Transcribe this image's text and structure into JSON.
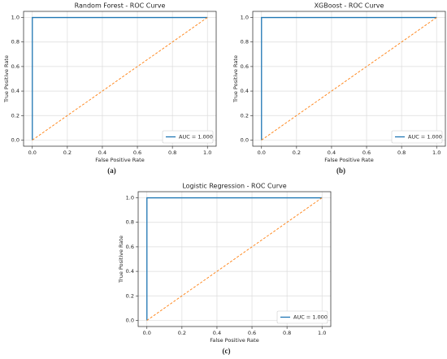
{
  "chart_data": [
    {
      "type": "line",
      "title": "Random Forest - ROC Curve",
      "xlabel": "False Positive Rate",
      "ylabel": "True Positive Rate",
      "caption": "(a)",
      "xlim": [
        -0.05,
        1.05
      ],
      "ylim": [
        -0.05,
        1.05
      ],
      "xticks": [
        {
          "value": 0,
          "label": "0.0"
        },
        0.2,
        0.4,
        0.6,
        0.8,
        {
          "value": 1,
          "label": "1.0"
        }
      ],
      "yticks": [
        {
          "value": 0,
          "label": "0.0"
        },
        0.2,
        0.4,
        0.6,
        0.8,
        {
          "value": 1,
          "label": "1.0"
        }
      ],
      "grid": true,
      "legend": "lower right",
      "series": [
        {
          "name": "AUC = 1.000",
          "color": "#1f77b4",
          "x": [
            0,
            0,
            1
          ],
          "values": [
            0,
            1,
            1
          ]
        },
        {
          "color": "#ff7f0e",
          "dashed": true,
          "x": [
            0,
            1
          ],
          "values": [
            0,
            1
          ]
        }
      ]
    },
    {
      "type": "line",
      "title": "XGBoost - ROC Curve",
      "xlabel": "False Positive Rate",
      "ylabel": "True Positive Rate",
      "caption": "(b)",
      "xlim": [
        -0.05,
        1.05
      ],
      "ylim": [
        -0.05,
        1.05
      ],
      "xticks": [
        {
          "value": 0,
          "label": "0.0"
        },
        0.2,
        0.4,
        0.6,
        0.8,
        {
          "value": 1,
          "label": "1.0"
        }
      ],
      "yticks": [
        {
          "value": 0,
          "label": "0.0"
        },
        0.2,
        0.4,
        0.6,
        0.8,
        {
          "value": 1,
          "label": "1.0"
        }
      ],
      "grid": true,
      "legend": "lower right",
      "series": [
        {
          "name": "AUC = 1.000",
          "color": "#1f77b4",
          "x": [
            0,
            0,
            1
          ],
          "values": [
            0,
            1,
            1
          ]
        },
        {
          "color": "#ff7f0e",
          "dashed": true,
          "x": [
            0,
            1
          ],
          "values": [
            0,
            1
          ]
        }
      ]
    },
    {
      "type": "line",
      "title": "Logistic Regression - ROC Curve",
      "xlabel": "False Positive Rate",
      "ylabel": "True Positive Rate",
      "caption": "(c)",
      "xlim": [
        -0.05,
        1.05
      ],
      "ylim": [
        -0.05,
        1.05
      ],
      "xticks": [
        {
          "value": 0,
          "label": "0.0"
        },
        0.2,
        0.4,
        0.6,
        0.8,
        {
          "value": 1,
          "label": "1.0"
        }
      ],
      "yticks": [
        {
          "value": 0,
          "label": "0.0"
        },
        0.2,
        0.4,
        0.6,
        0.8,
        {
          "value": 1,
          "label": "1.0"
        }
      ],
      "grid": true,
      "legend": "lower right",
      "series": [
        {
          "name": "AUC = 1.000",
          "color": "#1f77b4",
          "x": [
            0,
            0,
            1
          ],
          "values": [
            0,
            1,
            1
          ]
        },
        {
          "color": "#ff7f0e",
          "dashed": true,
          "x": [
            0,
            1
          ],
          "values": [
            0,
            1
          ]
        }
      ]
    }
  ]
}
